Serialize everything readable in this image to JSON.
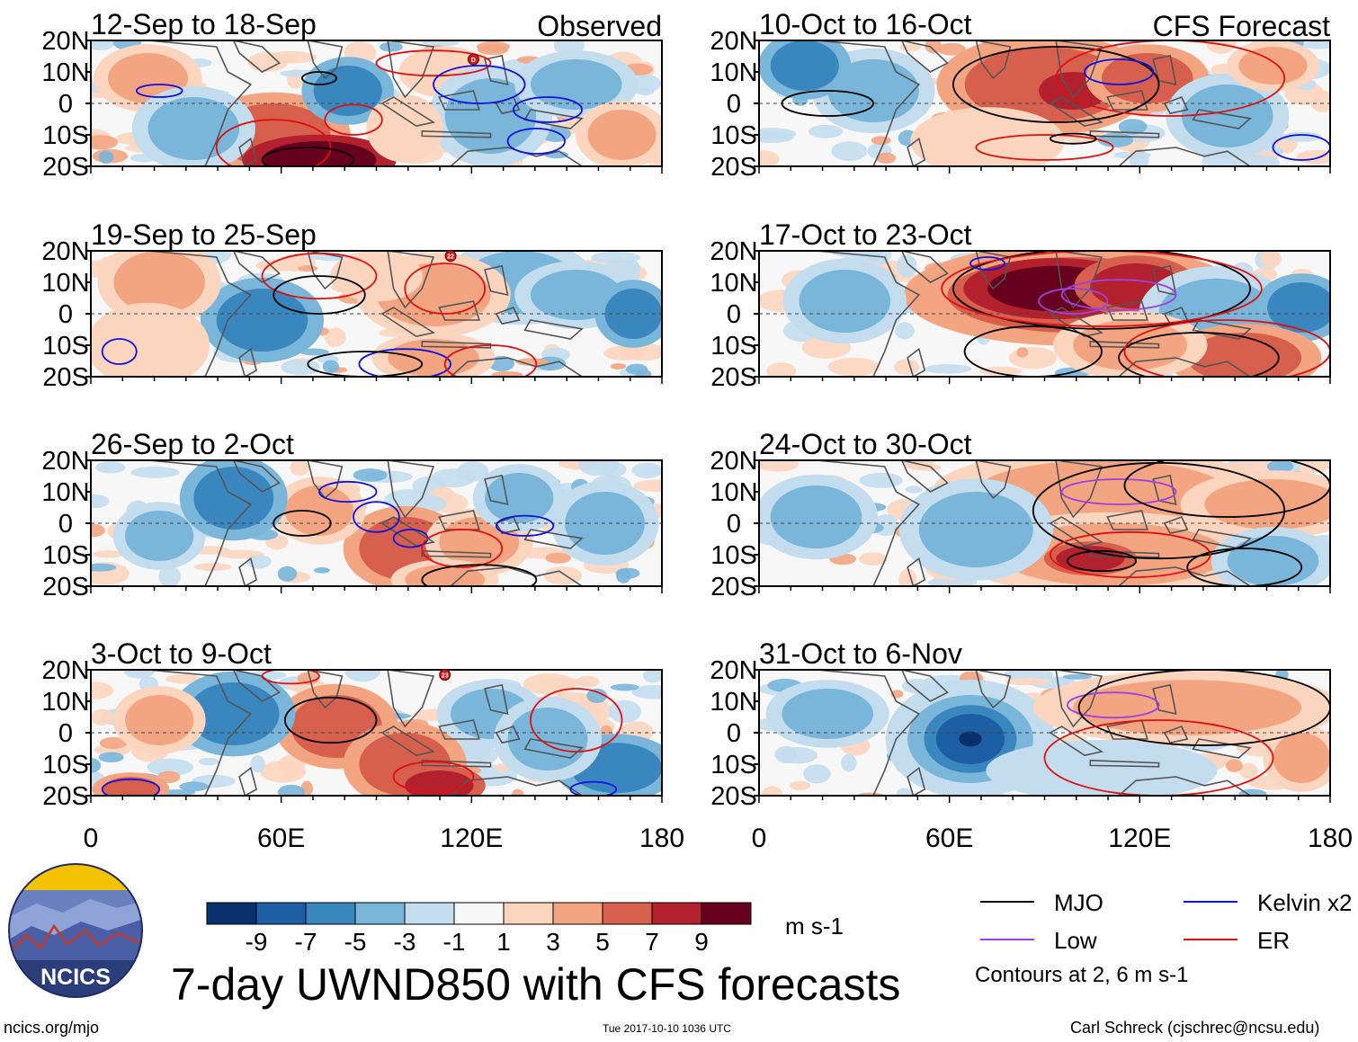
{
  "chart_data": {
    "type": "heatmap",
    "title": "7-day UWND850 with CFS forecasts",
    "variable": "850-hPa zonal wind anomaly",
    "units": "m s-1",
    "columns": [
      {
        "label": "Observed",
        "panels": [
          "12-Sep to 18-Sep",
          "19-Sep to 25-Sep",
          "26-Sep to 2-Oct",
          "3-Oct to 9-Oct"
        ]
      },
      {
        "label": "CFS Forecast",
        "panels": [
          "10-Oct to 16-Oct",
          "17-Oct to 23-Oct",
          "24-Oct to 30-Oct",
          "31-Oct to 6-Nov"
        ]
      }
    ],
    "lat_ticks": [
      "20N",
      "10N",
      "0",
      "10S",
      "20S"
    ],
    "lon_ticks": [
      "0",
      "60E",
      "120E",
      "180"
    ],
    "lat_range": [
      -20,
      20
    ],
    "lon_range": [
      0,
      180
    ],
    "colorbar": {
      "colors": [
        "#08306b",
        "#1d5fa5",
        "#3a87c0",
        "#79b6da",
        "#c3ddee",
        "#f7f7f7",
        "#fcd5bf",
        "#f3a582",
        "#d6604d",
        "#b3212f",
        "#67001f"
      ],
      "tick_labels": [
        "-9",
        "-7",
        "-5",
        "-3",
        "-1",
        "1",
        "3",
        "5",
        "7",
        "9"
      ]
    },
    "contour_legend": [
      {
        "name": "MJO",
        "color": "#000000"
      },
      {
        "name": "Kelvin x2",
        "color": "#1010e0"
      },
      {
        "name": "Low",
        "color": "#a040e0"
      },
      {
        "name": "ER",
        "color": "#e01010"
      }
    ],
    "contour_note": "Contours at 2, 6 m s-1",
    "storm_markers": [
      {
        "panel": "12-Sep to 18-Sep",
        "label": "D"
      },
      {
        "panel": "19-Sep to 25-Sep",
        "label": "22"
      },
      {
        "panel": "3-Oct to 9-Oct",
        "label": "23"
      }
    ]
  },
  "footer": {
    "logo_text": "NCICS",
    "url": "ncics.org/mjo",
    "timestamp": "Tue 2017-10-10 1036 UTC",
    "credit": "Carl Schreck (cjschrec@ncsu.edu)"
  }
}
